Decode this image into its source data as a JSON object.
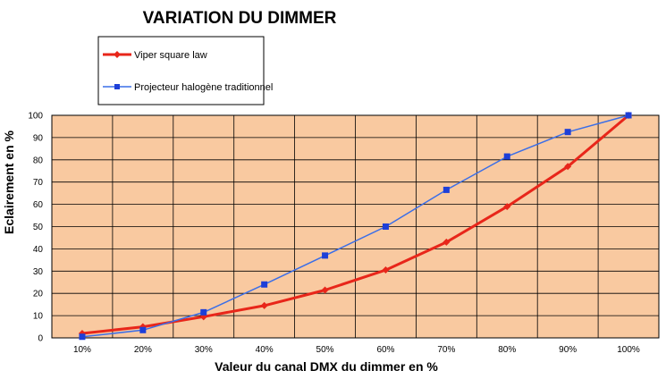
{
  "chart_data": {
    "type": "line",
    "title": "VARIATION DU DIMMER",
    "xlabel": "Valeur du canal DMX du dimmer en %",
    "ylabel": "Eclairement en %",
    "categories": [
      "10%",
      "20%",
      "30%",
      "40%",
      "50%",
      "60%",
      "70%",
      "80%",
      "90%",
      "100%"
    ],
    "ylim": [
      0,
      100
    ],
    "yticks": [
      0,
      10,
      20,
      30,
      40,
      50,
      60,
      70,
      80,
      90,
      100
    ],
    "grid": true,
    "legend_position": "top-left",
    "plot_background": "#f9c9a0",
    "series": [
      {
        "name": "Viper square law",
        "color": "#e8261a",
        "marker": "diamond",
        "values": [
          2,
          5,
          9.5,
          14.5,
          21.5,
          30.5,
          43,
          59,
          77,
          100
        ]
      },
      {
        "name": "Projecteur halogène traditionnel",
        "color": "#3a6ee8",
        "marker": "square",
        "values": [
          0.5,
          3.5,
          11.5,
          24,
          37,
          50,
          66.5,
          81.5,
          92.5,
          100
        ]
      }
    ]
  }
}
